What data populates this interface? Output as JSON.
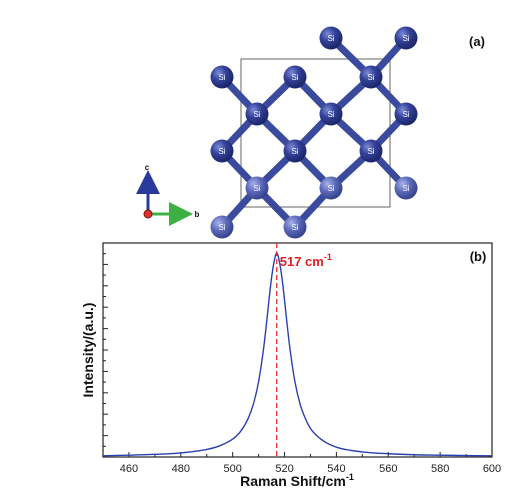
{
  "panel_a": {
    "label": "(a)",
    "atom_label": "Si",
    "axis_c": "c",
    "axis_b": "b",
    "colors": {
      "atom": "#2f3d8c",
      "bond": "#3a4a9c",
      "axis_c": "#2a3a9c",
      "axis_b": "#3cb043",
      "origin": "#e03030",
      "cell": "#555555"
    }
  },
  "chart_data": {
    "type": "line",
    "panel_label": "(b)",
    "xlabel": "Raman Shift/cm",
    "xlabel_sup": "-1",
    "ylabel": "Intensity/(a.u.)",
    "xlim": [
      450,
      600
    ],
    "xticks": [
      460,
      480,
      500,
      520,
      540,
      560,
      580,
      600
    ],
    "ylim": [
      0,
      1.05
    ],
    "yticks_labeled": false,
    "annotation": {
      "text": "517 cm",
      "sup": "-1",
      "x": 517,
      "color": "#e02020",
      "line_style": "dashed"
    },
    "series": [
      {
        "color": "#2a40b0",
        "x": [
          450,
          460,
          470,
          480,
          490,
          495,
          500,
          503,
          506,
          508,
          510,
          512,
          513,
          514,
          515,
          516,
          517,
          518,
          519,
          520,
          521,
          522,
          524,
          526,
          528,
          530,
          534,
          540,
          550,
          560,
          570,
          580,
          590,
          600
        ],
        "y": [
          0.006,
          0.009,
          0.013,
          0.02,
          0.037,
          0.055,
          0.088,
          0.125,
          0.19,
          0.26,
          0.37,
          0.54,
          0.65,
          0.77,
          0.88,
          0.96,
          1.0,
          0.96,
          0.88,
          0.77,
          0.65,
          0.54,
          0.37,
          0.26,
          0.19,
          0.14,
          0.088,
          0.048,
          0.025,
          0.016,
          0.011,
          0.009,
          0.007,
          0.006
        ]
      }
    ]
  }
}
